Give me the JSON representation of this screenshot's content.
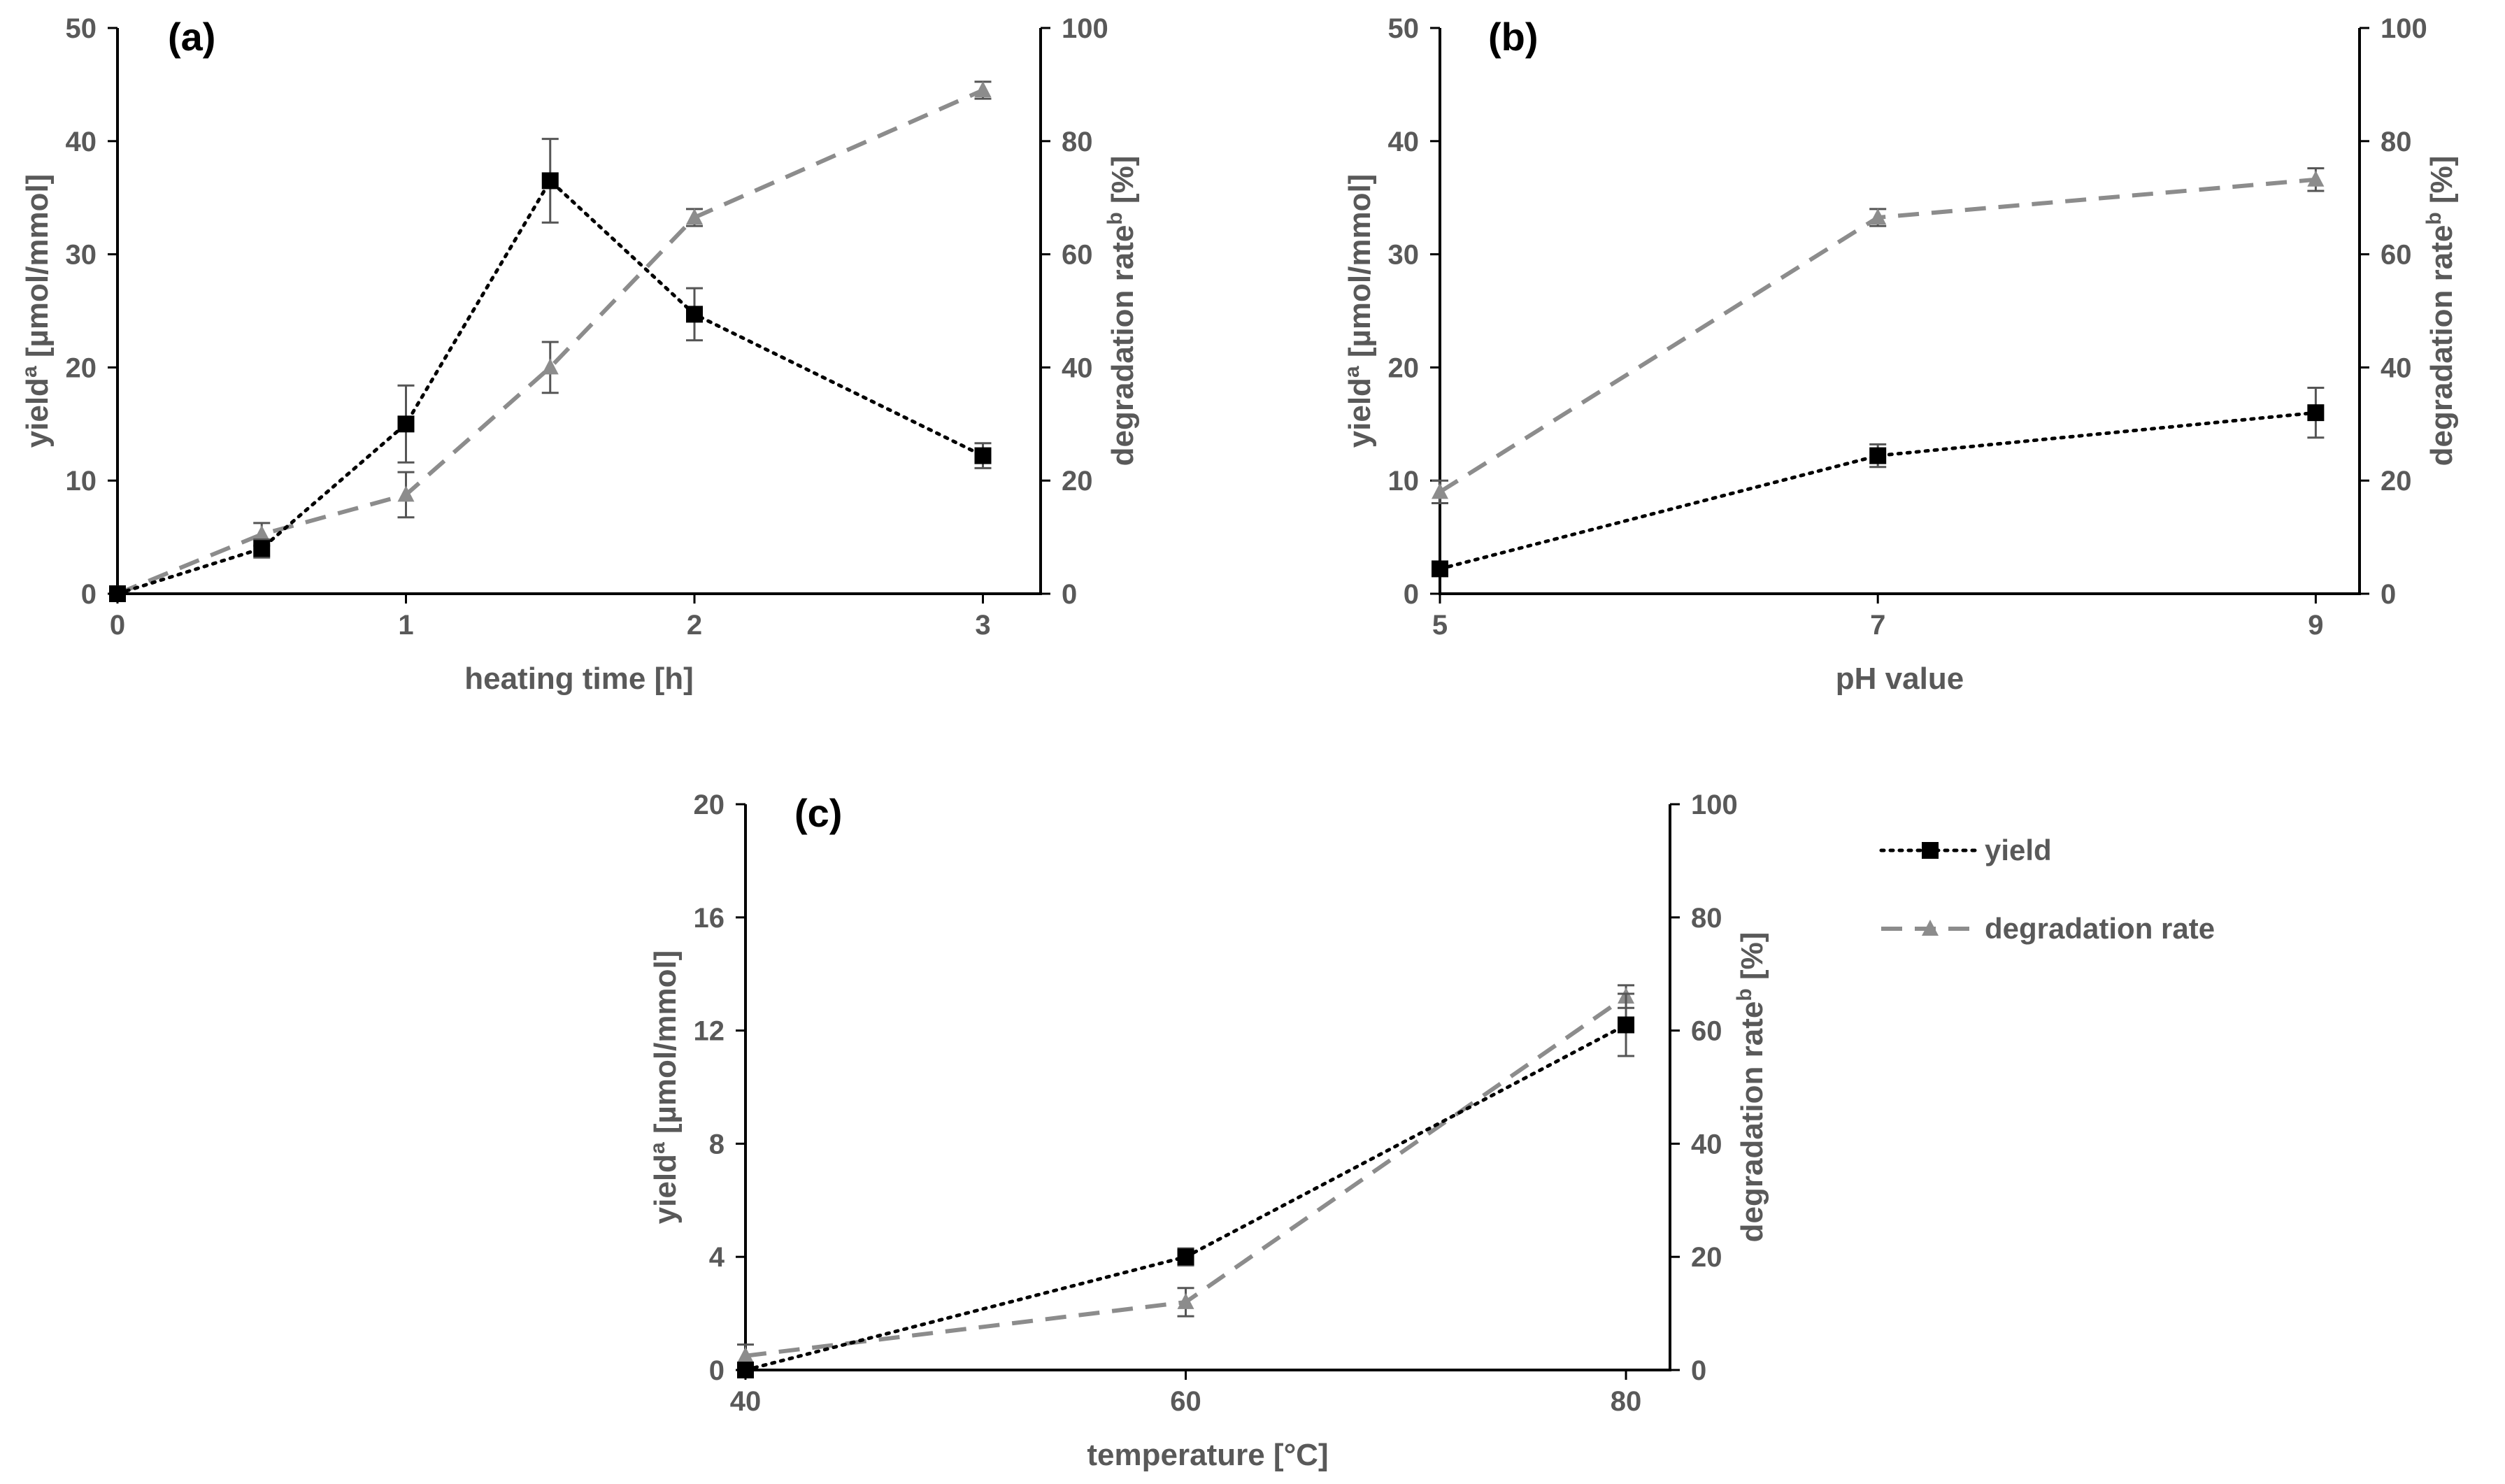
{
  "chart_data": [
    {
      "panel_label": "(a)",
      "type": "line",
      "xlabel": "heating time [h]",
      "ylabel": "yield",
      "ylabel_sup": "a",
      "ylabel_rest": " [µmol/mmol]",
      "y2label": "degradation rate",
      "y2label_sup": "b",
      "y2label_rest": " [%]",
      "xlim": [
        0,
        3.2
      ],
      "xticks": [
        0,
        1,
        2,
        3
      ],
      "ylim": [
        0,
        50
      ],
      "yticks": [
        0,
        10,
        20,
        30,
        40,
        50
      ],
      "y2lim": [
        0,
        100
      ],
      "y2ticks": [
        0,
        20,
        40,
        60,
        80,
        100
      ],
      "series": [
        {
          "name": "yield",
          "axis": "left",
          "marker": "square",
          "style": "dotted",
          "x": [
            0,
            0.5,
            1,
            1.5,
            2,
            3
          ],
          "values": [
            0,
            4,
            15,
            36.5,
            24.7,
            12.2
          ],
          "errors": [
            0,
            0.8,
            3.4,
            3.7,
            2.3,
            1.1
          ]
        },
        {
          "name": "degradation rate",
          "axis": "right",
          "marker": "triangle",
          "style": "dashed",
          "x": [
            0,
            0.5,
            1,
            1.5,
            2,
            3
          ],
          "values": [
            0,
            10.5,
            17.5,
            40,
            66.5,
            89
          ],
          "errors": [
            0,
            2,
            4,
            4.5,
            1.5,
            1.5
          ]
        }
      ]
    },
    {
      "panel_label": "(b)",
      "type": "line",
      "xlabel": "pH value",
      "ylabel": "yield",
      "ylabel_sup": "a",
      "ylabel_rest": " [µmol/mmol]",
      "y2label": "degradation rate",
      "y2label_sup": "b",
      "y2label_rest": " [%]",
      "xlim": [
        5,
        9.2
      ],
      "xticks": [
        5,
        7,
        9
      ],
      "ylim": [
        0,
        50
      ],
      "yticks": [
        0,
        10,
        20,
        30,
        40,
        50
      ],
      "y2lim": [
        0,
        100
      ],
      "y2ticks": [
        0,
        20,
        40,
        60,
        80,
        100
      ],
      "series": [
        {
          "name": "yield",
          "axis": "left",
          "marker": "square",
          "style": "dotted",
          "x": [
            5,
            7,
            9
          ],
          "values": [
            2.2,
            12.2,
            16
          ],
          "errors": [
            0,
            1,
            2.2
          ]
        },
        {
          "name": "degradation rate",
          "axis": "right",
          "marker": "triangle",
          "style": "dashed",
          "x": [
            5,
            7,
            9
          ],
          "values": [
            18,
            66.5,
            73.2
          ],
          "errors": [
            2,
            1.5,
            2
          ]
        }
      ]
    },
    {
      "panel_label": "(c)",
      "type": "line",
      "xlabel": "temperature [°C]",
      "ylabel": "yield",
      "ylabel_sup": "a",
      "ylabel_rest": " [µmol/mmol]",
      "y2label": "degradation rate",
      "y2label_sup": "b",
      "y2label_rest": " [%]",
      "xlim": [
        40,
        82
      ],
      "xticks": [
        40,
        60,
        80
      ],
      "ylim": [
        0,
        20
      ],
      "yticks": [
        0,
        4,
        8,
        12,
        16,
        20
      ],
      "y2lim": [
        0,
        100
      ],
      "y2ticks": [
        0,
        20,
        40,
        60,
        80,
        100
      ],
      "series": [
        {
          "name": "yield",
          "axis": "left",
          "marker": "square",
          "style": "dotted",
          "x": [
            40,
            60,
            80
          ],
          "values": [
            0,
            4,
            12.2
          ],
          "errors": [
            0,
            0.3,
            1.1
          ]
        },
        {
          "name": "degradation rate",
          "axis": "right",
          "marker": "triangle",
          "style": "dashed",
          "x": [
            40,
            60,
            80
          ],
          "values": [
            2.5,
            12,
            66
          ],
          "errors": [
            2,
            2.5,
            2
          ]
        }
      ]
    }
  ],
  "legend": {
    "position": "right-of-panel-c",
    "entries": [
      {
        "label": "yield",
        "marker": "square",
        "style": "dotted"
      },
      {
        "label": "degradation rate",
        "marker": "triangle",
        "style": "dashed"
      }
    ]
  },
  "colors": {
    "axis": "#000000",
    "text": "#595959",
    "yield": "#000000",
    "degradation": "#8c8c8c",
    "panel_label": "#000000"
  }
}
